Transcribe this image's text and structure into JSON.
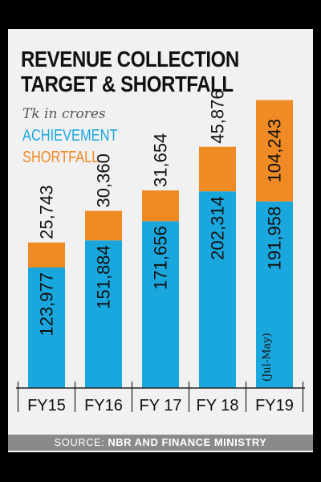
{
  "chart_data": {
    "type": "bar",
    "stacked": true,
    "title_line1": "REVENUE COLLECTION",
    "title_line2": "TARGET & SHORTFALL",
    "unit": "Tk in crores",
    "categories": [
      "FY15",
      "FY16",
      "FY 17",
      "FY 18",
      "FY19"
    ],
    "series": [
      {
        "name": "ACHIEVEMENT",
        "color": "#1aa7dd",
        "values": [
          123977,
          151884,
          171656,
          202314,
          191958
        ]
      },
      {
        "name": "SHORTFALL",
        "color": "#f08a24",
        "values": [
          25743,
          30360,
          31654,
          45876,
          104243
        ]
      }
    ],
    "labels": {
      "ACHIEVEMENT": [
        "123,977",
        "151,884",
        "171,656",
        "202,314",
        "191,958"
      ],
      "SHORTFALL": [
        "25,743",
        "30,360",
        "31,654",
        "45,876",
        "104,243"
      ]
    },
    "annotations": [
      {
        "category": "FY19",
        "text": "(Jul-May)"
      }
    ],
    "ylim": [
      0,
      300000
    ],
    "grid": false,
    "legend_position": "top-left"
  },
  "source": {
    "prefix": "SOURCE: ",
    "text": "NBR AND FINANCE MINISTRY"
  }
}
